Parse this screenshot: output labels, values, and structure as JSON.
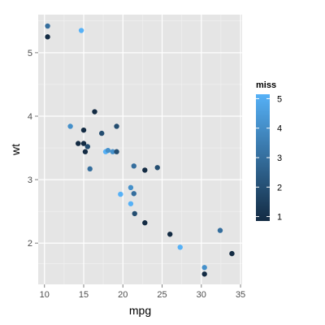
{
  "chart_data": {
    "type": "scatter",
    "xlabel": "mpg",
    "ylabel": "wt",
    "xlim": [
      9.2,
      35.2
    ],
    "ylim": [
      1.35,
      5.6
    ],
    "x_ticks": [
      10,
      15,
      20,
      25,
      30,
      35
    ],
    "y_ticks": [
      2,
      3,
      4,
      5
    ],
    "grid": true,
    "legend": {
      "title": "miss",
      "position": "right",
      "ticks": [
        1,
        2,
        3,
        4,
        5
      ],
      "range": [
        0.85,
        5.15
      ],
      "color_low": "#132b43",
      "color_high": "#56b1f7"
    },
    "points": [
      {
        "x": 10.4,
        "y": 5.42,
        "miss": 3
      },
      {
        "x": 10.4,
        "y": 5.25,
        "miss": 1
      },
      {
        "x": 14.7,
        "y": 5.35,
        "miss": 5
      },
      {
        "x": 16.4,
        "y": 4.07,
        "miss": 1
      },
      {
        "x": 13.3,
        "y": 3.84,
        "miss": 4
      },
      {
        "x": 19.2,
        "y": 3.84,
        "miss": 2
      },
      {
        "x": 15.0,
        "y": 3.78,
        "miss": 1
      },
      {
        "x": 17.3,
        "y": 3.73,
        "miss": 2
      },
      {
        "x": 14.3,
        "y": 3.57,
        "miss": 1
      },
      {
        "x": 15.0,
        "y": 3.57,
        "miss": 1
      },
      {
        "x": 15.5,
        "y": 3.52,
        "miss": 2
      },
      {
        "x": 15.2,
        "y": 3.44,
        "miss": 1
      },
      {
        "x": 17.8,
        "y": 3.44,
        "miss": 5
      },
      {
        "x": 18.1,
        "y": 3.46,
        "miss": 4
      },
      {
        "x": 18.7,
        "y": 3.44,
        "miss": 4
      },
      {
        "x": 19.2,
        "y": 3.44,
        "miss": 2
      },
      {
        "x": 15.8,
        "y": 3.17,
        "miss": 3
      },
      {
        "x": 21.4,
        "y": 3.215,
        "miss": 3
      },
      {
        "x": 22.8,
        "y": 3.15,
        "miss": 1
      },
      {
        "x": 24.4,
        "y": 3.19,
        "miss": 2
      },
      {
        "x": 21.0,
        "y": 2.875,
        "miss": 4
      },
      {
        "x": 21.4,
        "y": 2.78,
        "miss": 3
      },
      {
        "x": 19.7,
        "y": 2.77,
        "miss": 5
      },
      {
        "x": 21.0,
        "y": 2.62,
        "miss": 5
      },
      {
        "x": 21.5,
        "y": 2.465,
        "miss": 2
      },
      {
        "x": 22.8,
        "y": 2.32,
        "miss": 1
      },
      {
        "x": 32.4,
        "y": 2.2,
        "miss": 3
      },
      {
        "x": 26.0,
        "y": 2.14,
        "miss": 1
      },
      {
        "x": 27.3,
        "y": 1.935,
        "miss": 5
      },
      {
        "x": 33.9,
        "y": 1.835,
        "miss": 1
      },
      {
        "x": 30.4,
        "y": 1.615,
        "miss": 4
      },
      {
        "x": 30.4,
        "y": 1.513,
        "miss": 1
      }
    ]
  }
}
